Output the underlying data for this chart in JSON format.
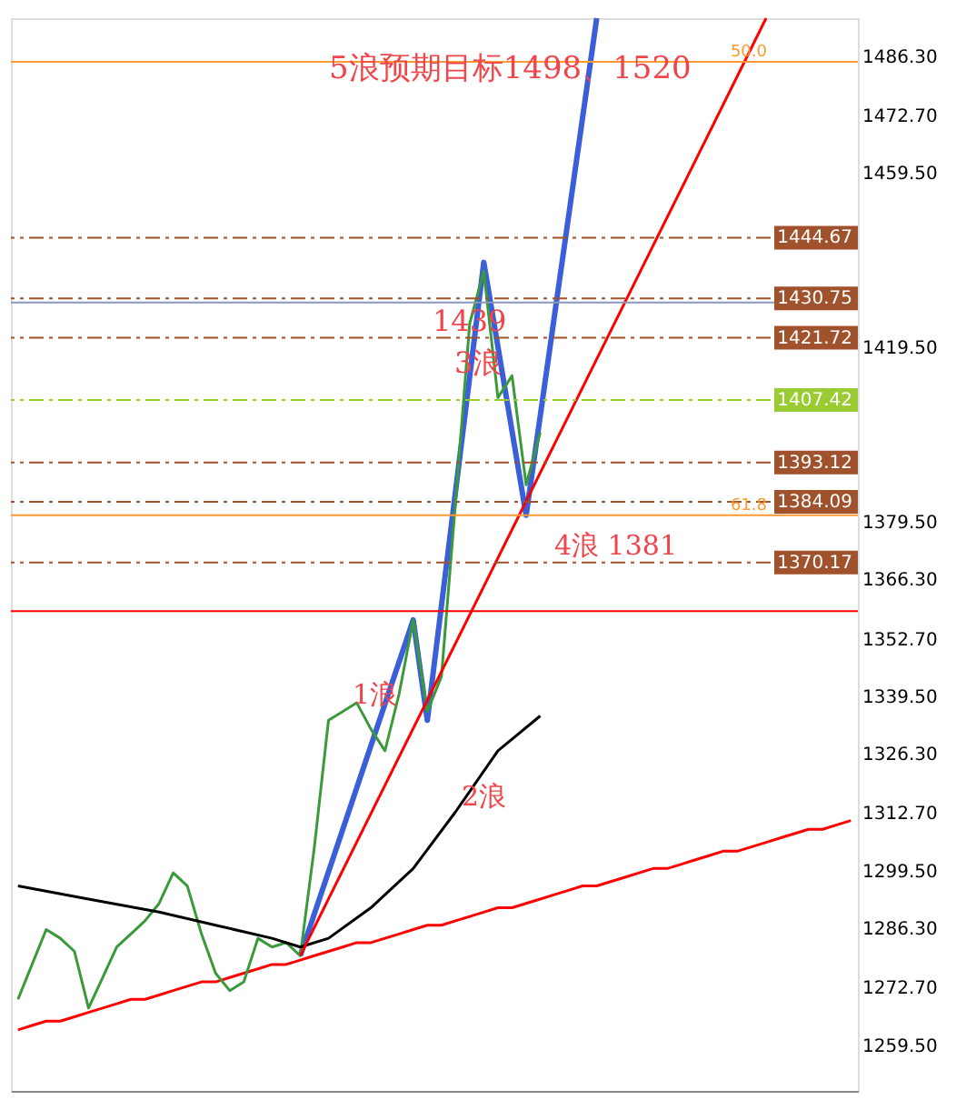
{
  "chart_data": {
    "type": "line",
    "categories": [
      null,
      null,
      null,
      null,
      null,
      null,
      null,
      null,
      null,
      null,
      null,
      null,
      null,
      null,
      null,
      null,
      null,
      null,
      null,
      null,
      null,
      null,
      null,
      null,
      null,
      null,
      null,
      null,
      null,
      null,
      null,
      null,
      null,
      null,
      null,
      null,
      null,
      null,
      null,
      null,
      null,
      null,
      null,
      null,
      null,
      null,
      null,
      null,
      null,
      null,
      null,
      null,
      null,
      null,
      null,
      null,
      null,
      null,
      null,
      null
    ],
    "ylim": [
      1249,
      1495
    ],
    "yticks": [
      {
        "value": 1486.3,
        "label": "1486.30"
      },
      {
        "value": 1472.7,
        "label": "1472.70"
      },
      {
        "value": 1459.5,
        "label": "1459.50"
      },
      {
        "value": 1419.5,
        "label": "1419.50"
      },
      {
        "value": 1379.5,
        "label": "1379.50"
      },
      {
        "value": 1366.3,
        "label": "1366.30"
      },
      {
        "value": 1352.7,
        "label": "1352.70"
      },
      {
        "value": 1339.5,
        "label": "1339.50"
      },
      {
        "value": 1326.3,
        "label": "1326.30"
      },
      {
        "value": 1312.7,
        "label": "1312.70"
      },
      {
        "value": 1299.5,
        "label": "1299.50"
      },
      {
        "value": 1286.3,
        "label": "1286.30"
      },
      {
        "value": 1272.7,
        "label": "1272.70"
      },
      {
        "value": 1259.5,
        "label": "1259.50"
      }
    ],
    "grid": false,
    "series": [
      {
        "color": "#ff0000",
        "values": [
          1263,
          1264,
          1265,
          1265,
          1266,
          1267,
          1268,
          1269,
          1270,
          1270,
          1271,
          1272,
          1273,
          1274,
          1274,
          1275,
          1276,
          1277,
          1278,
          1278,
          1279,
          1280,
          1281,
          1282,
          1283,
          1283,
          1284,
          1285,
          1286,
          1287,
          1287,
          1288,
          1289,
          1290,
          1291,
          1291,
          1292,
          1293,
          1294,
          1295,
          1296,
          1296,
          1297,
          1298,
          1299,
          1300,
          1300,
          1301,
          1302,
          1303,
          1304,
          1304,
          1305,
          1306,
          1307,
          1308,
          1309,
          1309,
          1310,
          1311
        ]
      },
      {
        "color": "#3a9a3a",
        "values": [
          1270,
          1278,
          1286,
          1284,
          1281,
          1268,
          1275,
          1282,
          1285,
          1288,
          1292,
          1299,
          1296,
          1285,
          1276,
          1272,
          1274,
          1284,
          1282,
          1283,
          1280,
          1305,
          1334,
          1336,
          1338,
          1332,
          1327,
          1340,
          1357,
          1336,
          1344,
          1384,
          1425,
          1437,
          1408,
          1413,
          1388,
          1400,
          null,
          null,
          null,
          null,
          null,
          null,
          null,
          null,
          null,
          null,
          null,
          null,
          null,
          null,
          null,
          null,
          null,
          null,
          null,
          null,
          null,
          null
        ]
      },
      {
        "color": "#000000",
        "values": [
          1296,
          null,
          null,
          null,
          null,
          1293,
          null,
          null,
          null,
          null,
          1290,
          null,
          null,
          null,
          1287,
          null,
          null,
          null,
          1284,
          null,
          1282,
          null,
          1284,
          null,
          null,
          1291,
          null,
          null,
          1300,
          null,
          null,
          1313,
          null,
          null,
          1327,
          null,
          null,
          1335,
          null,
          null,
          null,
          null,
          null,
          null,
          null,
          null,
          null,
          null,
          null,
          null,
          null,
          null,
          null,
          null,
          null,
          null,
          null,
          null,
          null,
          null
        ]
      },
      {
        "color": "#ff0000",
        "values": [
          null,
          null,
          null,
          null,
          null,
          null,
          null,
          null,
          null,
          null,
          null,
          null,
          null,
          null,
          null,
          null,
          null,
          null,
          null,
          null,
          1280,
          null,
          null,
          null,
          null,
          null,
          null,
          null,
          null,
          null,
          null,
          null,
          null,
          null,
          null,
          null,
          null,
          null,
          null,
          null,
          null,
          null,
          null,
          null,
          null,
          null,
          null,
          null,
          null,
          null,
          null,
          null,
          null,
          1495,
          null,
          null,
          null,
          null,
          null,
          null
        ]
      },
      {
        "color": "#3a5fd9",
        "values": [
          null,
          null,
          null,
          null,
          null,
          null,
          null,
          null,
          null,
          null,
          null,
          null,
          null,
          null,
          null,
          null,
          null,
          null,
          null,
          null,
          1280,
          null,
          null,
          null,
          null,
          null,
          null,
          null,
          1357,
          1334,
          null,
          null,
          null,
          1439,
          null,
          null,
          1381,
          null,
          null,
          null,
          null,
          1495,
          null,
          null,
          null,
          null,
          null,
          null,
          null,
          null,
          null,
          null,
          null,
          null,
          null,
          null,
          null,
          null,
          null,
          null
        ]
      }
    ],
    "ref_lines": [
      {
        "axis": "y",
        "value": 1485,
        "color": "#ff9933",
        "line_style": "solid"
      },
      {
        "axis": "y",
        "value": 1444.67,
        "label": "1444.67",
        "color": "#a0522d",
        "line_style": "dashdot"
      },
      {
        "axis": "y",
        "value": 1430.75,
        "label": "1430.75",
        "color": "#a0522d",
        "line_style": "dashdot"
      },
      {
        "axis": "y",
        "value": 1429.81,
        "color": "#8899bb",
        "line_style": "solid"
      },
      {
        "axis": "y",
        "value": 1421.72,
        "label": "1421.72",
        "color": "#a0522d",
        "line_style": "dashdot"
      },
      {
        "axis": "y",
        "value": 1407.42,
        "label": "1407.42",
        "color": "#99cc33",
        "line_style": "dashdot"
      },
      {
        "axis": "y",
        "value": 1393.12,
        "label": "1393.12",
        "color": "#a0522d",
        "line_style": "dashdot"
      },
      {
        "axis": "y",
        "value": 1384.09,
        "label": "1384.09",
        "color": "#a0522d",
        "line_style": "dashdot"
      },
      {
        "axis": "y",
        "value": 1381,
        "color": "#ff9933",
        "line_style": "solid"
      },
      {
        "axis": "y",
        "value": 1370.17,
        "label": "1370.17",
        "color": "#a0522d",
        "line_style": "dashdot"
      },
      {
        "axis": "y",
        "value": 1359,
        "color": "#ff0000",
        "line_style": "solid"
      }
    ],
    "annotations": [
      "5浪预期目标1498、1520",
      "1439",
      "3浪",
      "1浪",
      "2浪",
      "4浪 1381",
      {
        "text": "50.0",
        "y": 1485
      },
      {
        "text": "61.8",
        "y": 1381
      }
    ]
  }
}
